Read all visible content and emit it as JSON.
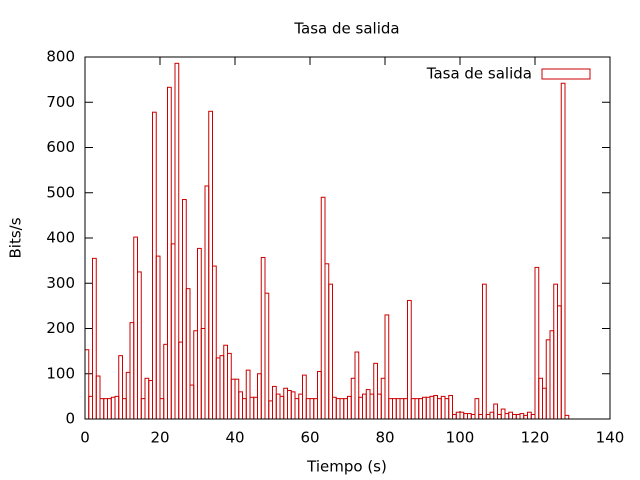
{
  "chart_data": {
    "type": "bar",
    "title": "Tasa de salida",
    "x_label": "Tiempo (s)",
    "y_label": "Bits/s",
    "x": [
      0,
      1,
      2,
      3,
      4,
      5,
      6,
      7,
      8,
      9,
      10,
      11,
      12,
      13,
      14,
      15,
      16,
      17,
      18,
      19,
      20,
      21,
      22,
      23,
      24,
      25,
      26,
      27,
      28,
      29,
      30,
      31,
      32,
      33,
      34,
      35,
      36,
      37,
      38,
      39,
      40,
      41,
      42,
      43,
      44,
      45,
      46,
      47,
      48,
      49,
      50,
      51,
      52,
      53,
      54,
      55,
      56,
      57,
      58,
      59,
      60,
      61,
      62,
      63,
      64,
      65,
      66,
      67,
      68,
      69,
      70,
      71,
      72,
      73,
      74,
      75,
      76,
      77,
      78,
      79,
      80,
      81,
      82,
      83,
      84,
      85,
      86,
      87,
      88,
      89,
      90,
      91,
      92,
      93,
      94,
      95,
      96,
      97,
      98,
      99,
      100,
      101,
      102,
      103,
      104,
      105,
      106,
      107,
      108,
      109,
      110,
      111,
      112,
      113,
      114,
      115,
      116,
      117,
      118,
      119,
      120,
      121,
      122,
      123,
      124,
      125,
      126,
      127,
      128
    ],
    "series": [
      {
        "name": "Tasa de salida",
        "color": "#cc0000",
        "values": [
          153,
          50,
          355,
          95,
          45,
          45,
          45,
          48,
          50,
          140,
          45,
          103,
          213,
          402,
          325,
          45,
          90,
          85,
          678,
          360,
          45,
          165,
          733,
          387,
          786,
          170,
          485,
          288,
          75,
          195,
          377,
          200,
          515,
          680,
          338,
          135,
          140,
          163,
          145,
          88,
          88,
          60,
          45,
          108,
          48,
          48,
          100,
          357,
          278,
          40,
          72,
          55,
          50,
          68,
          63,
          60,
          45,
          55,
          97,
          45,
          45,
          45,
          105,
          490,
          343,
          298,
          48,
          45,
          45,
          45,
          50,
          90,
          148,
          48,
          55,
          65,
          55,
          123,
          55,
          90,
          230,
          45,
          45,
          45,
          45,
          45,
          262,
          45,
          45,
          45,
          48,
          48,
          50,
          52,
          45,
          50,
          45,
          52,
          10,
          15,
          15,
          12,
          12,
          10,
          45,
          10,
          298,
          10,
          15,
          33,
          10,
          22,
          12,
          15,
          10,
          10,
          12,
          8,
          15,
          10,
          335,
          90,
          68,
          175,
          195,
          298,
          250,
          742,
          8
        ]
      }
    ],
    "xlim": [
      0,
      140
    ],
    "xticks": [
      0,
      20,
      40,
      60,
      80,
      100,
      120,
      140
    ],
    "ylim": [
      0,
      800
    ],
    "yticks": [
      0,
      100,
      200,
      300,
      400,
      500,
      600,
      700,
      800
    ],
    "legend": "top-right"
  }
}
